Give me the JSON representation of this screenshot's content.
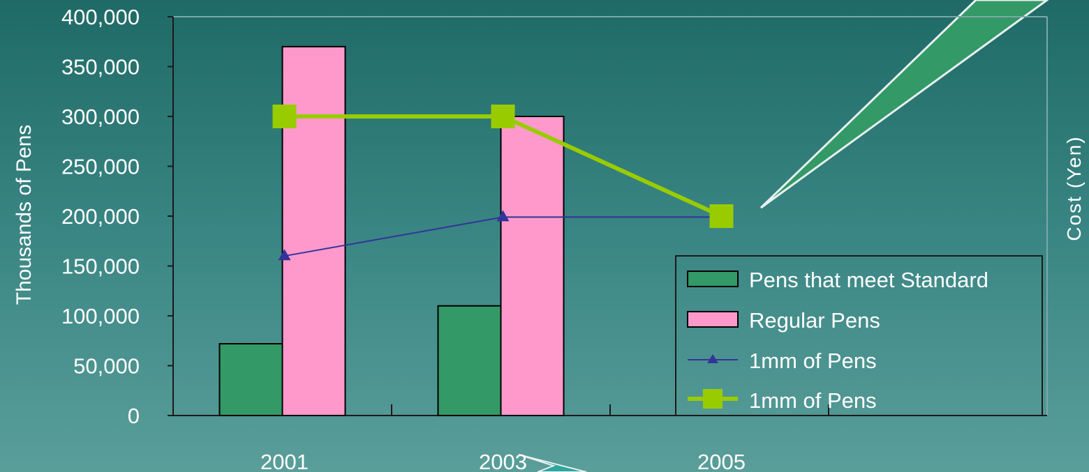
{
  "chart_data": {
    "type": "bar",
    "categories": [
      "2001",
      "2003",
      "2005"
    ],
    "ylabel": "Thousands of Pens",
    "y2label": "Cost (Yen)",
    "ylim": [
      0,
      400000
    ],
    "yticks": [
      "0",
      "50,000",
      "100,000",
      "150,000",
      "200,000",
      "250,000",
      "300,000",
      "350,000",
      "400,000"
    ],
    "grid": false,
    "legend_position": "bottom-right",
    "series": [
      {
        "name": "Pens that meet Standard",
        "kind": "bar",
        "color": "#339966",
        "values": [
          72000,
          110000,
          null
        ]
      },
      {
        "name": "Regular Pens",
        "kind": "bar",
        "color": "#ff99cc",
        "values": [
          370000,
          300000,
          null
        ]
      },
      {
        "name": "1mm of Pens",
        "kind": "line",
        "marker": "triangle",
        "color": "#333399",
        "values": [
          160000,
          199000,
          199000
        ]
      },
      {
        "name": "1mm of Pens",
        "kind": "line",
        "marker": "square",
        "color": "#99cc00",
        "values": [
          300000,
          300000,
          200000
        ]
      }
    ]
  },
  "colors": {
    "axis": "#1a1a1a",
    "text": "#ffffff",
    "callout_fill": "#339966",
    "callout_fill_bottom": "#2fa5a0",
    "callout_stroke": "#e8f0f0"
  }
}
